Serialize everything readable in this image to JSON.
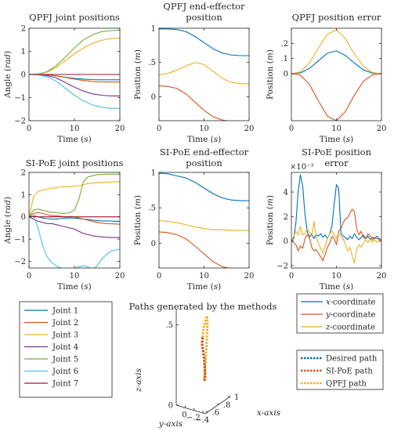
{
  "colors": {
    "j1": "#0072BD",
    "j2": "#D95319",
    "j3": "#EDB120",
    "j4": "#7E2F8E",
    "j5": "#77AC30",
    "j6": "#4DBEEE",
    "j7": "#A2142F",
    "axis": "#262626"
  },
  "legend_joints": {
    "entries": [
      "Joint 1",
      "Joint 2",
      "Joint 3",
      "Joint 4",
      "Joint 5",
      "Joint 6",
      "Joint 7"
    ]
  },
  "legend_coords": {
    "entries": [
      {
        "axis": "x",
        "suffix": "-coordinate"
      },
      {
        "axis": "y",
        "suffix": "-coordinate"
      },
      {
        "axis": "z",
        "suffix": "-coordinate"
      }
    ]
  },
  "legend_paths": {
    "entries": [
      "Desired path",
      "SI-PoE path",
      "QPFJ path"
    ]
  },
  "chart_data": [
    {
      "id": "qpfj_joints",
      "type": "line",
      "title": [
        "QPFJ joint positions"
      ],
      "xlabel": "Time",
      "xunit": "s",
      "ylabel": "Angle",
      "yunit": "rad",
      "xlim": [
        0,
        20
      ],
      "ylim": [
        -2,
        2
      ],
      "xticks": [
        0,
        10,
        20
      ],
      "yticks": [
        -2,
        -1,
        0,
        1,
        2
      ],
      "x": [
        0,
        2,
        4,
        6,
        8,
        10,
        12,
        14,
        16,
        18,
        20
      ],
      "series": [
        {
          "name": "Joint 1",
          "color": "j1",
          "values": [
            0,
            0,
            -0.02,
            -0.06,
            -0.12,
            -0.17,
            -0.2,
            -0.22,
            -0.23,
            -0.23,
            -0.23
          ]
        },
        {
          "name": "Joint 2",
          "color": "j2",
          "values": [
            0,
            0,
            -0.02,
            -0.06,
            -0.13,
            -0.2,
            -0.26,
            -0.3,
            -0.32,
            -0.33,
            -0.33
          ]
        },
        {
          "name": "Joint 3",
          "color": "j3",
          "values": [
            0,
            0.02,
            0.1,
            0.3,
            0.6,
            0.9,
            1.15,
            1.35,
            1.48,
            1.55,
            1.58
          ]
        },
        {
          "name": "Joint 4",
          "color": "j4",
          "values": [
            0,
            -0.01,
            -0.05,
            -0.15,
            -0.35,
            -0.55,
            -0.72,
            -0.84,
            -0.9,
            -0.93,
            -0.93
          ]
        },
        {
          "name": "Joint 5",
          "color": "j5",
          "values": [
            0,
            0.02,
            0.12,
            0.38,
            0.75,
            1.15,
            1.5,
            1.72,
            1.85,
            1.9,
            1.92
          ]
        },
        {
          "name": "Joint 6",
          "color": "j6",
          "values": [
            0,
            -0.02,
            -0.1,
            -0.3,
            -0.6,
            -0.9,
            -1.15,
            -1.32,
            -1.42,
            -1.46,
            -1.47
          ]
        },
        {
          "name": "Joint 7",
          "color": "j7",
          "values": [
            0,
            0,
            0,
            0,
            0,
            0,
            0,
            0,
            0,
            0,
            0
          ]
        }
      ]
    },
    {
      "id": "qpfj_ee",
      "type": "line",
      "title": [
        "QPFJ end-effector",
        "position"
      ],
      "xlabel": "Time",
      "xunit": "s",
      "ylabel": "Position",
      "yunit": "m",
      "xlim": [
        0,
        20
      ],
      "ylim": [
        -0.35,
        1.0
      ],
      "xticks": [
        0,
        10,
        20
      ],
      "yticks": [
        0,
        0.5,
        1
      ],
      "x": [
        0,
        2,
        4,
        6,
        8,
        10,
        12,
        14,
        16,
        18,
        20
      ],
      "series": [
        {
          "name": "x",
          "color": "j1",
          "values": [
            0.99,
            0.99,
            0.98,
            0.95,
            0.88,
            0.79,
            0.7,
            0.64,
            0.61,
            0.6,
            0.6
          ]
        },
        {
          "name": "y",
          "color": "j2",
          "values": [
            0.16,
            0.15,
            0.12,
            0.04,
            -0.08,
            -0.2,
            -0.29,
            -0.34,
            -0.36,
            -0.36,
            -0.36
          ]
        },
        {
          "name": "z",
          "color": "j3",
          "values": [
            0.32,
            0.34,
            0.39,
            0.45,
            0.5,
            0.47,
            0.37,
            0.27,
            0.21,
            0.19,
            0.19
          ]
        }
      ]
    },
    {
      "id": "qpfj_err",
      "type": "line",
      "title": [
        "QPFJ position error"
      ],
      "xlabel": "Time",
      "xunit": "s",
      "ylabel": "Position",
      "yunit": "m",
      "xlim": [
        0,
        20
      ],
      "ylim": [
        -0.31,
        0.3
      ],
      "xticks": [
        0,
        10,
        20
      ],
      "yticks": [
        0,
        0.1,
        0.2
      ],
      "x": [
        0,
        2,
        4,
        6,
        8,
        10,
        12,
        14,
        16,
        18,
        20
      ],
      "series": [
        {
          "name": "x",
          "color": "j1",
          "values": [
            0,
            0.005,
            0.035,
            0.085,
            0.135,
            0.15,
            0.12,
            0.07,
            0.025,
            0.004,
            0
          ]
        },
        {
          "name": "y",
          "color": "j2",
          "values": [
            0,
            -0.01,
            -0.07,
            -0.18,
            -0.28,
            -0.31,
            -0.25,
            -0.14,
            -0.05,
            -0.008,
            0
          ]
        },
        {
          "name": "z",
          "color": "j3",
          "values": [
            0,
            0.012,
            0.07,
            0.17,
            0.26,
            0.29,
            0.23,
            0.13,
            0.05,
            0.008,
            0
          ]
        }
      ]
    },
    {
      "id": "sipoe_joints",
      "type": "line",
      "title": [
        "SI-PoE joint positions"
      ],
      "xlabel": "Time",
      "xunit": "s",
      "ylabel": "Angle",
      "yunit": "rad",
      "xlim": [
        0,
        20
      ],
      "ylim": [
        -2.3,
        2.0
      ],
      "xticks": [
        0,
        10,
        20
      ],
      "yticks": [
        -2,
        -1,
        0,
        1,
        2
      ],
      "x": [
        0,
        1,
        2,
        3,
        4,
        5,
        6,
        7,
        8,
        9,
        10,
        11,
        12,
        13,
        14,
        15,
        16,
        17,
        18,
        19,
        20
      ],
      "series": [
        {
          "name": "Joint 1",
          "color": "j1",
          "values": [
            0,
            0.05,
            0.0,
            -0.05,
            -0.08,
            -0.1,
            -0.1,
            -0.08,
            -0.05,
            -0.05,
            -0.06,
            -0.08,
            -0.1,
            -0.12,
            -0.15,
            -0.17,
            -0.18,
            -0.18,
            -0.18,
            -0.2,
            -0.2
          ]
        },
        {
          "name": "Joint 2",
          "color": "j2",
          "values": [
            0,
            0.15,
            0.2,
            0.15,
            0.1,
            0.05,
            0.05,
            0.03,
            0.0,
            0.02,
            0.0,
            -0.05,
            -0.1,
            -0.15,
            -0.2,
            -0.25,
            -0.28,
            -0.3,
            -0.31,
            -0.32,
            -0.33
          ]
        },
        {
          "name": "Joint 3",
          "color": "j3",
          "values": [
            0,
            0.9,
            1.15,
            1.2,
            1.25,
            1.3,
            1.3,
            1.35,
            1.35,
            1.35,
            1.38,
            1.4,
            1.45,
            1.5,
            1.52,
            1.54,
            1.55,
            1.56,
            1.57,
            1.58,
            1.58
          ]
        },
        {
          "name": "Joint 4",
          "color": "j4",
          "values": [
            0,
            -0.1,
            -0.2,
            -0.25,
            -0.3,
            -0.3,
            -0.35,
            -0.4,
            -0.45,
            -0.5,
            -0.55,
            -0.65,
            -0.75,
            -0.8,
            -0.85,
            -0.88,
            -0.9,
            -0.92,
            -0.93,
            -0.93,
            -0.93
          ]
        },
        {
          "name": "Joint 5",
          "color": "j5",
          "values": [
            0,
            0.3,
            0.35,
            0.3,
            0.25,
            0.2,
            0.2,
            0.15,
            0.15,
            0.2,
            0.3,
            0.8,
            1.6,
            1.8,
            1.85,
            1.9,
            1.9,
            1.92,
            1.92,
            1.92,
            1.92
          ]
        },
        {
          "name": "Joint 6",
          "color": "j6",
          "values": [
            0,
            0.05,
            -0.5,
            -1.3,
            -1.8,
            -2.05,
            -2.2,
            -2.3,
            -2.35,
            -2.35,
            -2.3,
            -2.25,
            -2.2,
            -2.25,
            -2.35,
            -2.2,
            -1.9,
            -1.7,
            -1.55,
            -1.5,
            -1.45
          ]
        },
        {
          "name": "Joint 7",
          "color": "j7",
          "values": [
            0,
            0,
            0,
            0,
            0,
            0,
            0,
            0,
            0,
            0,
            0,
            0,
            0,
            0,
            0,
            0,
            0,
            0,
            0,
            0,
            0
          ]
        }
      ]
    },
    {
      "id": "sipoe_ee",
      "type": "line",
      "title": [
        "SI-PoE end-effector",
        "position"
      ],
      "xlabel": "Time",
      "xunit": "s",
      "ylabel": "Position",
      "yunit": "m",
      "xlim": [
        0,
        20
      ],
      "ylim": [
        -0.35,
        1.0
      ],
      "xticks": [
        0,
        10,
        20
      ],
      "yticks": [
        0,
        0.5,
        1
      ],
      "x": [
        0,
        2,
        4,
        6,
        8,
        10,
        12,
        14,
        16,
        18,
        20
      ],
      "series": [
        {
          "name": "x",
          "color": "j1",
          "values": [
            0.99,
            0.98,
            0.95,
            0.92,
            0.86,
            0.78,
            0.7,
            0.64,
            0.61,
            0.6,
            0.6
          ]
        },
        {
          "name": "y",
          "color": "j2",
          "values": [
            0.16,
            0.15,
            0.12,
            0.06,
            -0.04,
            -0.15,
            -0.26,
            -0.33,
            -0.36,
            -0.37,
            -0.37
          ]
        },
        {
          "name": "z",
          "color": "j3",
          "values": [
            0.32,
            0.31,
            0.29,
            0.26,
            0.23,
            0.21,
            0.19,
            0.19,
            0.18,
            0.18,
            0.18
          ]
        }
      ]
    },
    {
      "id": "sipoe_err",
      "type": "line",
      "title": [
        "SI-PoE position",
        "error"
      ],
      "exponent": "×10⁻³",
      "xlabel": "Time",
      "xunit": "s",
      "ylabel": "Position",
      "yunit": "m",
      "xlim": [
        0,
        20
      ],
      "ylim": [
        -2.2,
        5.6
      ],
      "xticks": [
        0,
        10,
        20
      ],
      "yticks": [
        -2,
        0,
        2,
        4
      ],
      "x": [
        0,
        0.5,
        1,
        1.5,
        2,
        2.5,
        3,
        3.5,
        4,
        4.5,
        5,
        5.5,
        6,
        6.5,
        7,
        7.5,
        8,
        8.5,
        9,
        9.5,
        10,
        10.5,
        11,
        11.5,
        12,
        12.5,
        13,
        13.5,
        14,
        14.5,
        15,
        15.5,
        16,
        16.5,
        17,
        17.5,
        18,
        18.5,
        19,
        19.5,
        20
      ],
      "series": [
        {
          "name": "x",
          "color": "j1",
          "values": [
            0,
            0.2,
            1.5,
            4.0,
            5.4,
            4.5,
            2.2,
            0.8,
            0.3,
            0.6,
            0.2,
            0.5,
            0.4,
            0.6,
            0.3,
            0.5,
            0.2,
            0.6,
            1.2,
            3.0,
            4.6,
            4.3,
            0.6,
            0.4,
            0.3,
            0.1,
            0.4,
            0.2,
            0.6,
            0.3,
            0.1,
            0.3,
            0.5,
            0.2,
            0.4,
            0.1,
            0.3,
            0.2,
            0.4,
            0.2,
            0.1
          ]
        },
        {
          "name": "y",
          "color": "j2",
          "values": [
            0,
            -0.1,
            -0.3,
            -0.8,
            -0.4,
            -0.6,
            0.2,
            0.5,
            0.3,
            -0.5,
            -0.8,
            -0.7,
            -1.0,
            -1.3,
            -1.6,
            -1.1,
            -0.5,
            -0.2,
            0.4,
            0.2,
            -0.3,
            0.8,
            1.0,
            1.5,
            1.8,
            1.9,
            2.3,
            2.6,
            2.4,
            1.0,
            0.5,
            0.8,
            0.3,
            0.2,
            0.6,
            0.4,
            0.1,
            0.3,
            0.2,
            0.1,
            0.1
          ]
        },
        {
          "name": "z",
          "color": "j3",
          "values": [
            0,
            0.4,
            0.8,
            0.5,
            1.2,
            0.5,
            0.6,
            1.0,
            0.7,
            0.4,
            1.6,
            0.3,
            -0.2,
            -0.6,
            -1.0,
            -0.4,
            0.2,
            0.6,
            0.8,
            0.5,
            0.3,
            0.6,
            0.4,
            0.2,
            -0.3,
            -0.8,
            -0.5,
            -1.2,
            -1.8,
            -0.7,
            -0.3,
            -0.5,
            -0.2,
            0.1,
            -0.1,
            0.2,
            -0.1,
            0.1,
            -0.1,
            0.0,
            0.0
          ]
        }
      ]
    },
    {
      "id": "paths3d",
      "type": "line",
      "title": [
        "Paths generated by the methods"
      ],
      "xlabel": "x-axis",
      "ylabel": "y-axis",
      "zlabel": "z-axis",
      "xticks": [
        0.6,
        0.8,
        1
      ],
      "yticks": [
        0,
        -0.2,
        -0.4
      ],
      "zticks": [
        0,
        0.5
      ],
      "xlim": [
        0.55,
        1.0
      ],
      "ylim": [
        -0.45,
        0.2
      ],
      "zlim": [
        0,
        0.6
      ],
      "series": [
        {
          "name": "Desired path",
          "color": "j1",
          "style": "dotted",
          "x": [
            0.99,
            0.98,
            0.95,
            0.92,
            0.86,
            0.78,
            0.7,
            0.64,
            0.61,
            0.6,
            0.6
          ],
          "y": [
            0.16,
            0.15,
            0.12,
            0.06,
            -0.04,
            -0.15,
            -0.26,
            -0.33,
            -0.36,
            -0.37,
            -0.37
          ],
          "z": [
            0.32,
            0.31,
            0.29,
            0.26,
            0.23,
            0.21,
            0.19,
            0.19,
            0.18,
            0.18,
            0.18
          ]
        },
        {
          "name": "SI-PoE path",
          "color": "j2",
          "style": "dotted",
          "x": [
            0.99,
            0.98,
            0.95,
            0.92,
            0.86,
            0.78,
            0.7,
            0.64,
            0.61,
            0.6,
            0.6
          ],
          "y": [
            0.16,
            0.15,
            0.12,
            0.06,
            -0.04,
            -0.15,
            -0.26,
            -0.33,
            -0.36,
            -0.37,
            -0.37
          ],
          "z": [
            0.32,
            0.31,
            0.29,
            0.26,
            0.23,
            0.21,
            0.19,
            0.19,
            0.18,
            0.18,
            0.18
          ]
        },
        {
          "name": "QPFJ path",
          "color": "j3",
          "style": "dotted",
          "x": [
            0.99,
            0.99,
            0.98,
            0.95,
            0.88,
            0.79,
            0.7,
            0.64,
            0.61,
            0.6,
            0.6
          ],
          "y": [
            0.16,
            0.15,
            0.12,
            0.04,
            -0.08,
            -0.2,
            -0.29,
            -0.34,
            -0.36,
            -0.36,
            -0.36
          ],
          "z": [
            0.32,
            0.34,
            0.39,
            0.45,
            0.5,
            0.47,
            0.37,
            0.27,
            0.21,
            0.19,
            0.19
          ]
        }
      ]
    }
  ]
}
